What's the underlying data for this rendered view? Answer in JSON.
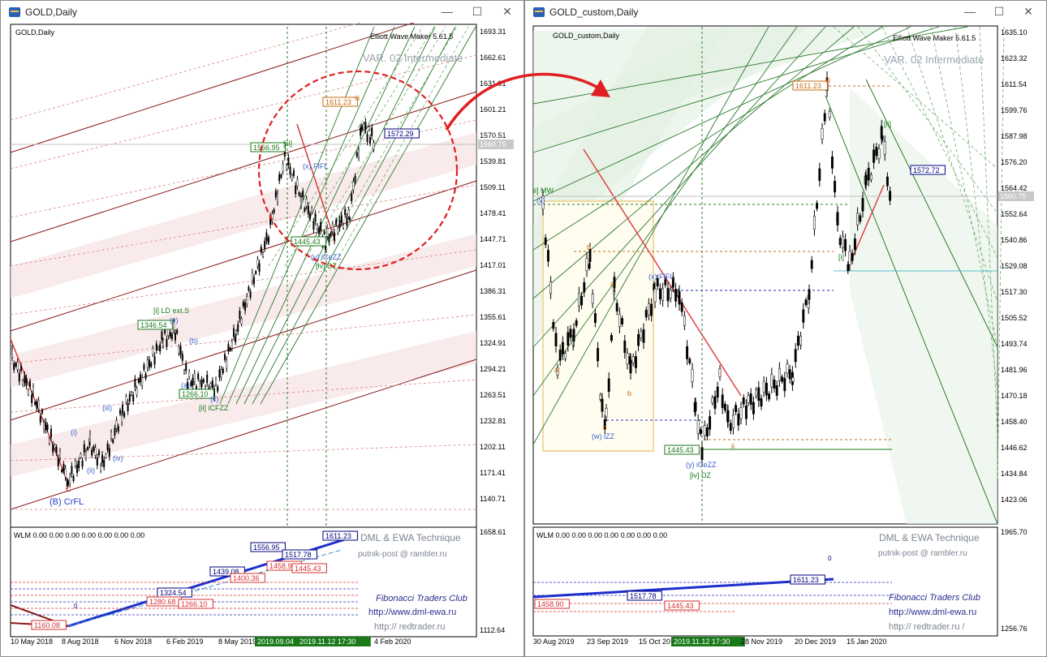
{
  "left": {
    "title": "GOLD,Daily",
    "chart_label": "GOLD,Daily",
    "ewm": "Elliott Wave Maker 5.61.5",
    "var": "VAR. 02 Intermediate",
    "price_ticks": [
      "1693.31",
      "1662.61",
      "1631.91",
      "1601.21",
      "1570.51",
      "1539.81",
      "1509.11",
      "1478.41",
      "1447.71",
      "1417.01",
      "1386.31",
      "1355.61",
      "1324.91",
      "1294.21",
      "1263.51",
      "1232.81",
      "1202.11",
      "1171.41",
      "1140.71"
    ],
    "current_price": "1560.75",
    "date_ticks": [
      "10 May 2018",
      "8 Aug 2018",
      "6 Nov 2018",
      "6 Feb 2019",
      "8 May 2019",
      "2019.09.04",
      "2019.11.12 17:30",
      "4 Feb 2020"
    ],
    "labels": {
      "b1": "1556.95",
      "b2": "1611.23",
      "b3": "1572.29",
      "b4": "1445.43",
      "b5": "1346.54",
      "b6": "1266.10",
      "w1": "[i] LD ext.S",
      "w2": "(v)",
      "w3": "(iii)",
      "w4": "(iv)",
      "w5": "(ii)",
      "w6": "(i)",
      "w7": "(B) CrFL",
      "w8": "C",
      "w9": "(y) iCeZZ",
      "w10": "[iv] DZ",
      "w11": "[ii] iCFZZ",
      "w12": "(c)",
      "w13": "(b)",
      "w14": "(a)",
      "w15": "(x) FIFL",
      "w16": "iii",
      "w17": "[iii]"
    },
    "sub": {
      "header": "WLM 0.00 0.00 0.00 0.00 0.00 0.00 0.00",
      "ticks": [
        "1658.61",
        "1112.64"
      ],
      "labels": [
        "1611.23",
        "1556.95",
        "1517.78",
        "1439.08",
        "1458.90",
        "1445.43",
        "1400.36",
        "1324.54",
        "1280.68",
        "1266.10",
        "1160.08",
        "0"
      ],
      "text1": "DML & EWA Technique",
      "text2": "putnik-post @ rambler.ru",
      "text3": "Fibonacci Traders Club",
      "text4": "http://www.dml-ewa.ru",
      "text5": "http:// redtrader.ru"
    }
  },
  "right": {
    "title": "GOLD_custom,Daily",
    "chart_label": "GOLD_custom,Daily",
    "ewm": "Elliott Wave Maker 5.61.5",
    "var": "VAR. 02 Intermediate",
    "price_ticks": [
      "1635.10",
      "1623.32",
      "1611.54",
      "1599.76",
      "1587.98",
      "1576.20",
      "1564.42",
      "1552.64",
      "1540.86",
      "1529.08",
      "1517.30",
      "1505.52",
      "1493.74",
      "1481.96",
      "1470.18",
      "1458.40",
      "1446.62",
      "1434.84",
      "1423.06"
    ],
    "current_price": "1560.75",
    "date_ticks": [
      "30 Aug 2019",
      "23 Sep 2019",
      "15 Oct 20",
      "2019.11.12 17:30",
      "28 Nov 2019",
      "20 Dec 2019",
      "15 Jan 2020"
    ],
    "labels": {
      "b1": "1611.23",
      "b2": "1572.72",
      "b3": "1445.43",
      "w1": "iii",
      "w2": "ii] MW",
      "w3": "(v)",
      "w4": "(w) iZZ",
      "w5": "(x) FIFL",
      "w6": "(y) iCeZZ",
      "w7": "[iv] DZ",
      "w8": "a",
      "w9": "b",
      "w10": "c",
      "w11": "a",
      "w12": "b",
      "w13": "i",
      "w14": "ii",
      "w15": "[i]",
      "w16": "[ii]"
    },
    "sub": {
      "header": "WLM 0.00 0.00 0.00 0.00 0.00 0.00 0.00",
      "ticks": [
        "1965.70",
        "1256.76"
      ],
      "labels": [
        "1611.23",
        "1517.78",
        "1458.90",
        "1445.43",
        "0"
      ],
      "text1": "DML & EWA Technique",
      "text2": "putnik-post @ rambler.ru",
      "text3": "Fibonacci Traders Club",
      "text4": "http://www.dml-ewa.ru",
      "text5": "http:// redtrader.ru /"
    }
  },
  "controls": {
    "min": "—",
    "max": "☐",
    "close": "✕"
  }
}
